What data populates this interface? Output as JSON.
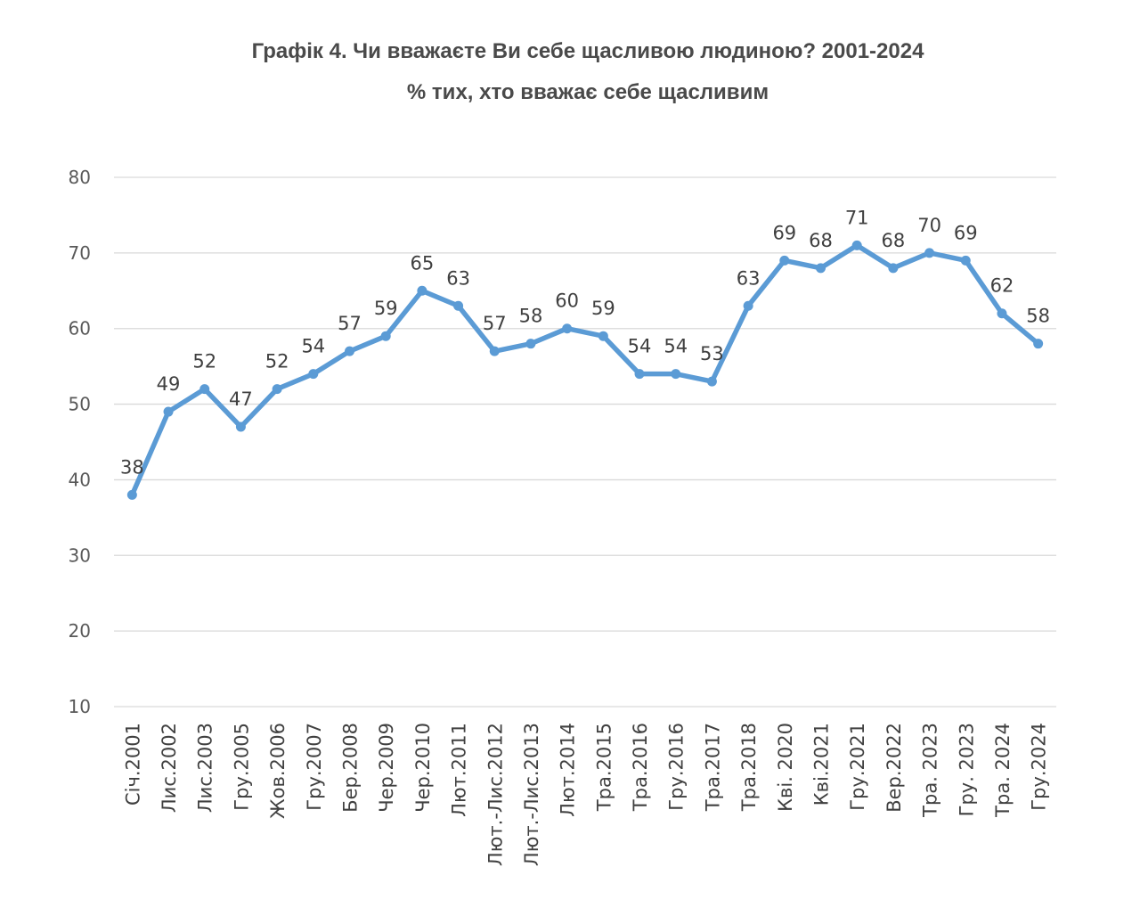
{
  "chart_data": {
    "type": "line",
    "title": "Графік 4. Чи вважаєте Ви себе щасливою людиною? 2001-2024",
    "subtitle": "% тих, хто вважає себе щасливим",
    "categories": [
      "Січ.2001",
      "Лис.2002",
      "Лис.2003",
      "Гру.2005",
      "Жов.2006",
      "Гру.2007",
      "Бер.2008",
      "Чер.2009",
      "Чер.2010",
      "Лют.2011",
      "Лют.-Лис.2012",
      "Лют.-Лис.2013",
      "Лют.2014",
      "Тра.2015",
      "Тра.2016",
      "Гру.2016",
      "Тра.2017",
      "Тра.2018",
      "Кві. 2020",
      "Кві.2021",
      "Гру.2021",
      "Вер.2022",
      "Тра. 2023",
      "Гру. 2023",
      "Тра. 2024",
      "Гру.2024"
    ],
    "values": [
      38,
      49,
      52,
      47,
      52,
      54,
      57,
      59,
      65,
      63,
      57,
      58,
      60,
      59,
      54,
      54,
      53,
      63,
      69,
      68,
      71,
      68,
      70,
      69,
      62,
      58
    ],
    "ylim": [
      10,
      80
    ],
    "yticks": [
      10,
      20,
      30,
      40,
      50,
      60,
      70,
      80
    ],
    "grid": true,
    "legend": "none",
    "color": "#5b9bd5"
  }
}
